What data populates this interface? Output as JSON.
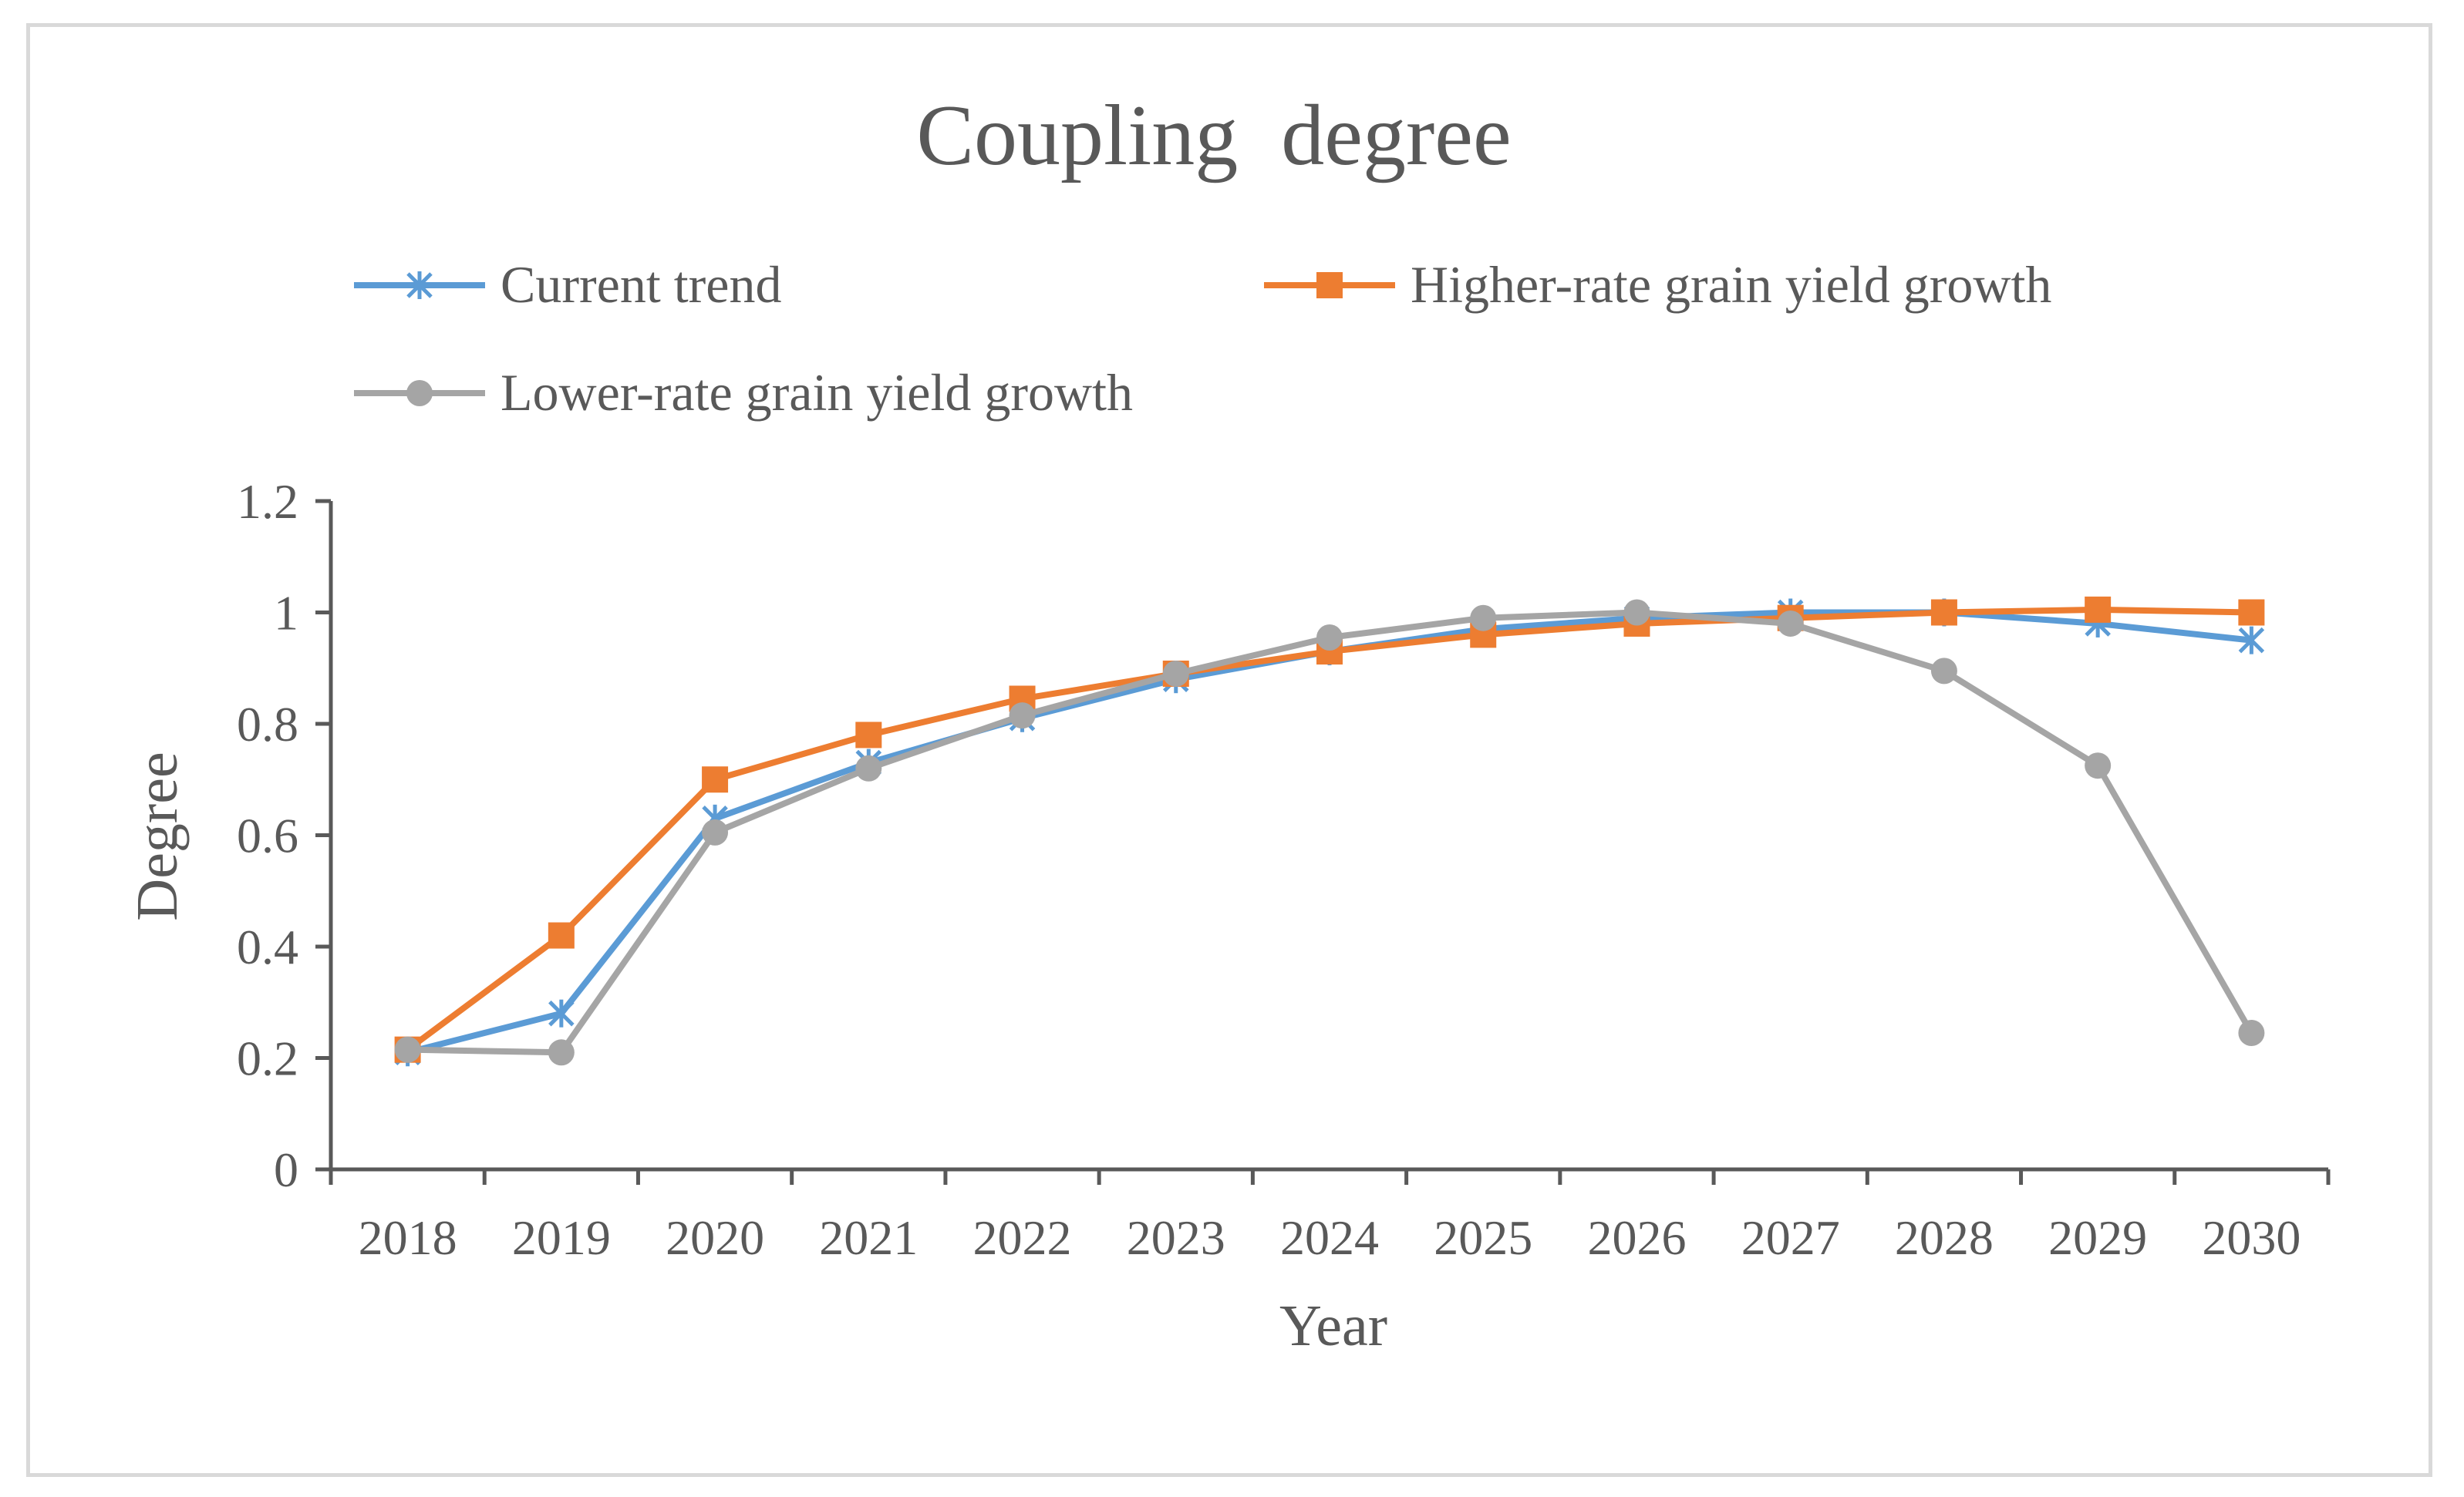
{
  "chart_data": {
    "type": "line",
    "title": "Coupling  degree",
    "xlabel": "Year",
    "ylabel": "Degree",
    "categories": [
      "2018",
      "2019",
      "2020",
      "2021",
      "2022",
      "2023",
      "2024",
      "2025",
      "2026",
      "2027",
      "2028",
      "2029",
      "2030"
    ],
    "yticks": [
      "0",
      "0.2",
      "0.4",
      "0.6",
      "0.8",
      "1",
      "1.2"
    ],
    "ylim": [
      0,
      1.2
    ],
    "grid": false,
    "legend_position": "top",
    "series": [
      {
        "name": "Current trend",
        "color": "#5b9bd5",
        "marker": "asterisk",
        "values": [
          0.21,
          0.28,
          0.63,
          0.73,
          0.81,
          0.88,
          0.93,
          0.97,
          0.99,
          1.0,
          1.0,
          0.98,
          0.95
        ]
      },
      {
        "name": "Higher-rate grain yield growth",
        "color": "#ed7d31",
        "marker": "square",
        "values": [
          0.215,
          0.42,
          0.7,
          0.78,
          0.845,
          0.89,
          0.93,
          0.96,
          0.98,
          0.99,
          1.0,
          1.005,
          1.0
        ]
      },
      {
        "name": "Lower-rate grain yield growth",
        "color": "#a5a5a5",
        "marker": "circle",
        "values": [
          0.215,
          0.21,
          0.605,
          0.72,
          0.815,
          0.89,
          0.955,
          0.99,
          1.0,
          0.98,
          0.895,
          0.725,
          0.245
        ]
      }
    ]
  }
}
